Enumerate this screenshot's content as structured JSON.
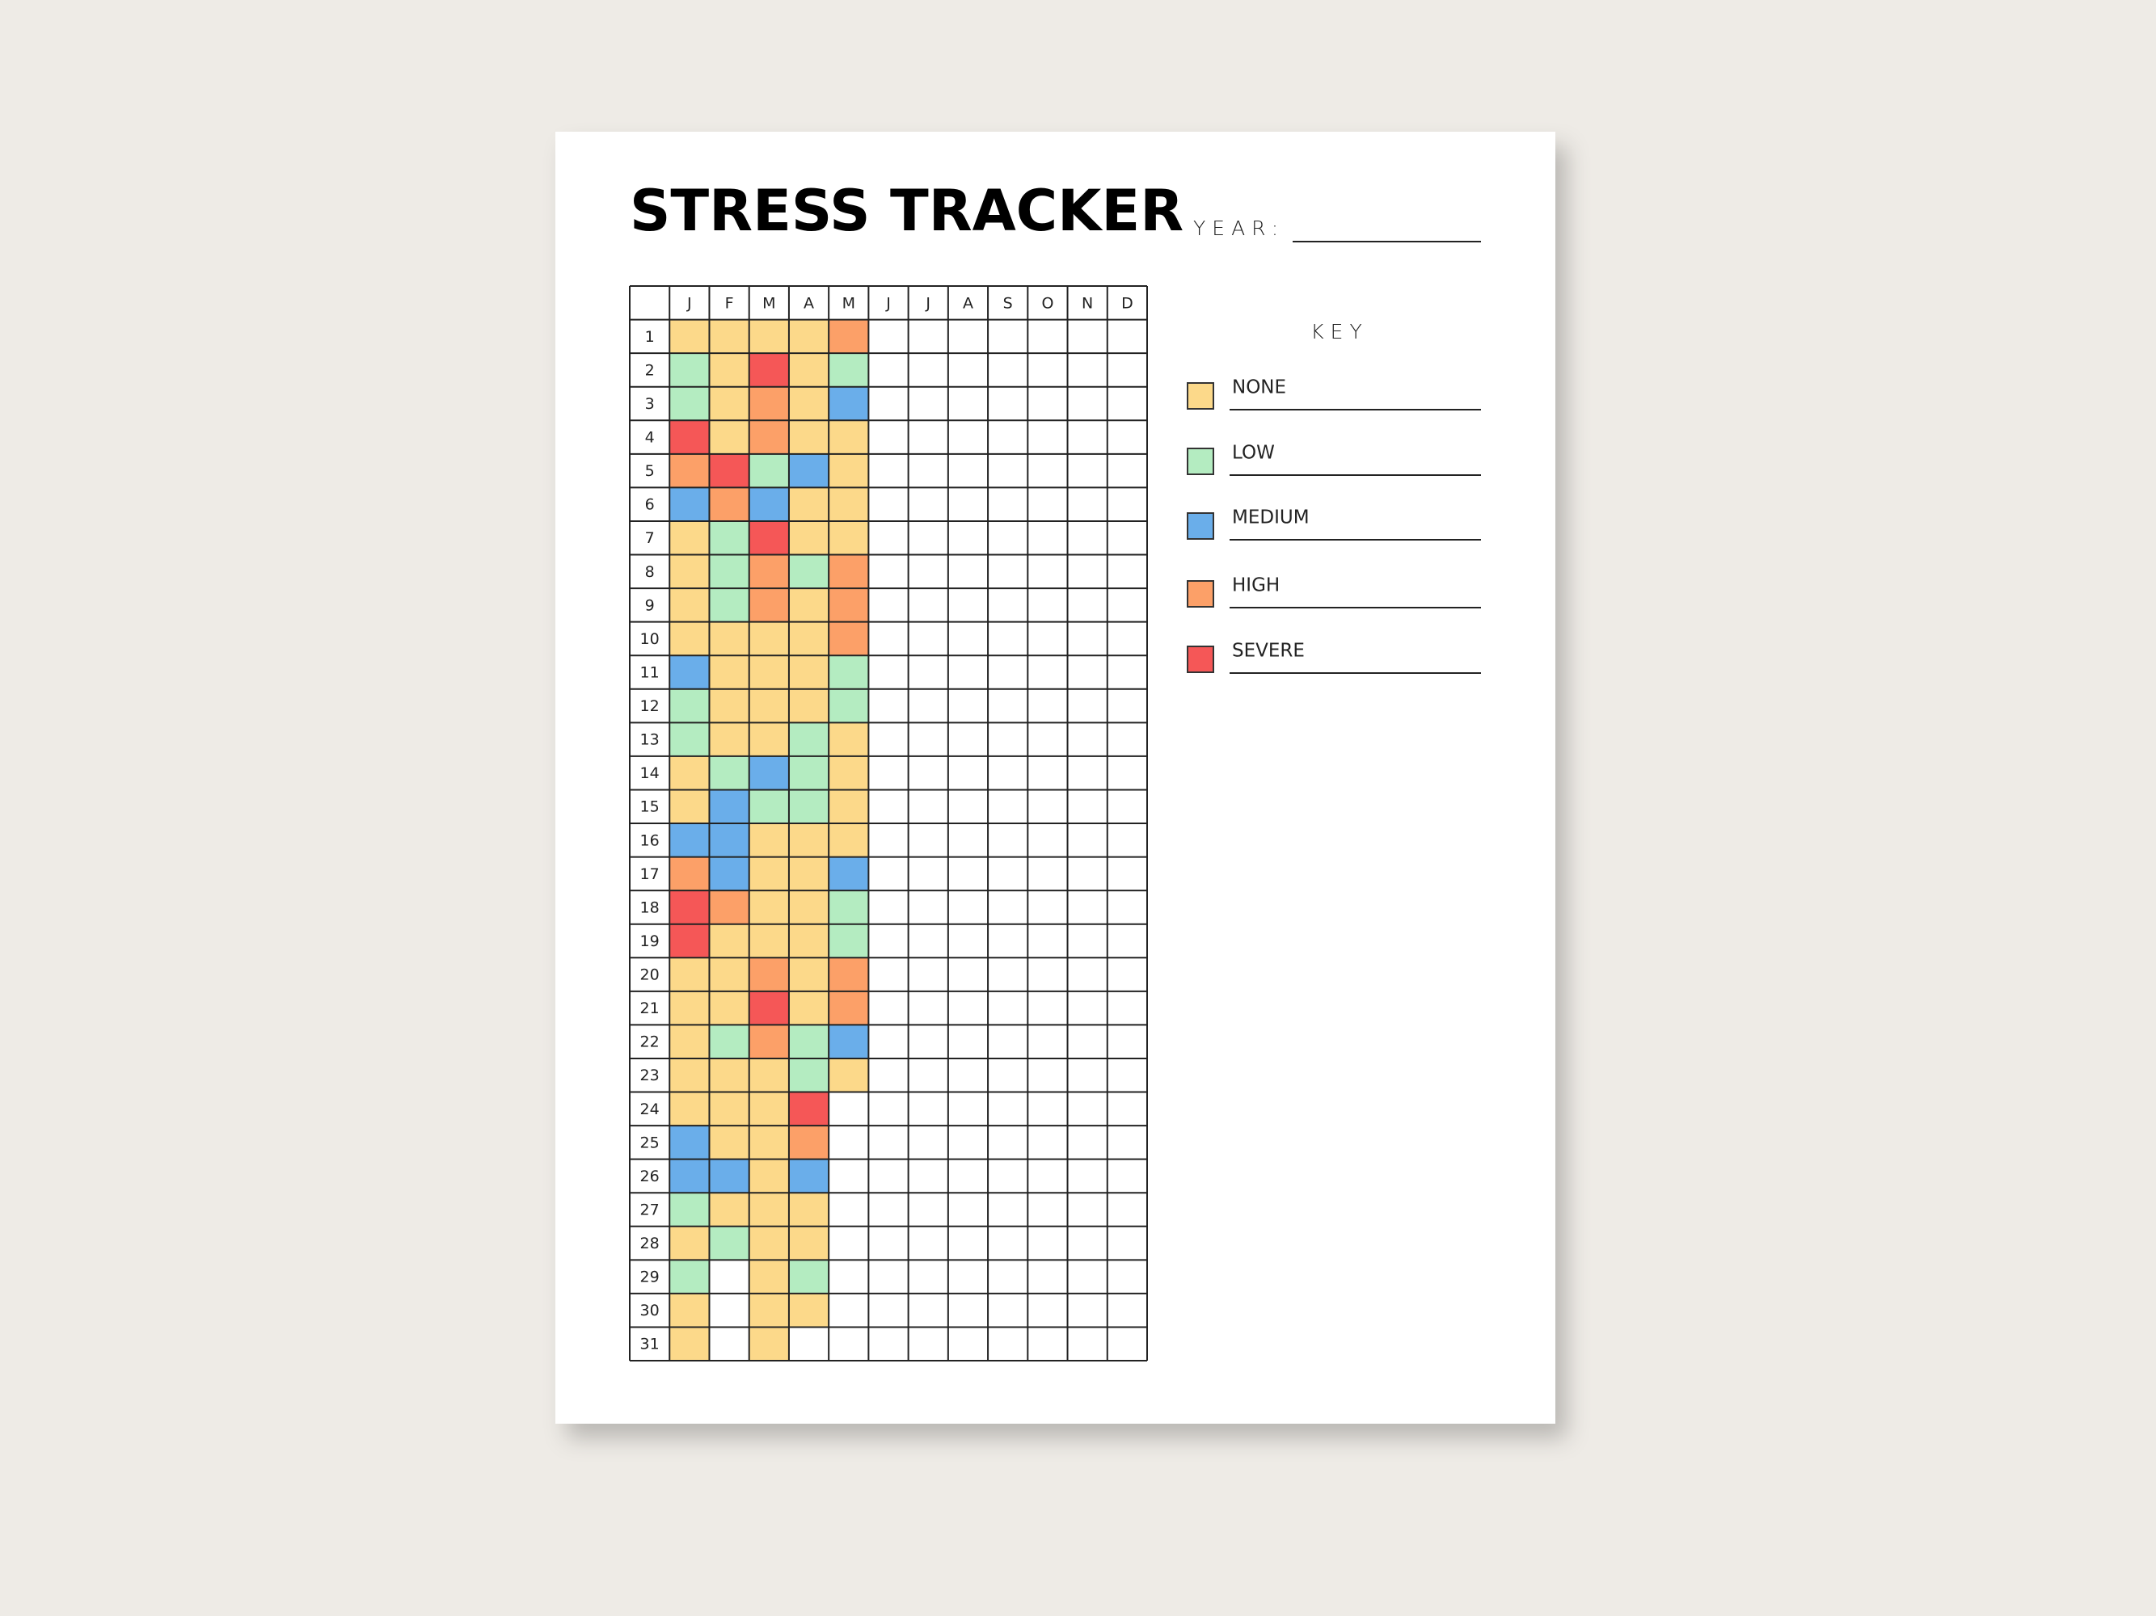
{
  "title": "STRESS TRACKER",
  "year_label": "YEAR:",
  "tracker": {
    "months": [
      "J",
      "F",
      "M",
      "A",
      "M",
      "J",
      "J",
      "A",
      "S",
      "O",
      "N",
      "D"
    ],
    "days": [
      1,
      2,
      3,
      4,
      5,
      6,
      7,
      8,
      9,
      10,
      11,
      12,
      13,
      14,
      15,
      16,
      17,
      18,
      19,
      20,
      21,
      22,
      23,
      24,
      25,
      26,
      27,
      28,
      29,
      30,
      31
    ],
    "cells": [
      [
        0,
        0,
        0,
        0,
        3
      ],
      [
        1,
        0,
        4,
        0,
        1
      ],
      [
        1,
        0,
        3,
        0,
        2
      ],
      [
        4,
        0,
        3,
        0,
        0
      ],
      [
        3,
        4,
        1,
        2,
        0
      ],
      [
        2,
        3,
        2,
        0,
        0
      ],
      [
        0,
        1,
        4,
        0,
        0
      ],
      [
        0,
        1,
        3,
        1,
        3
      ],
      [
        0,
        1,
        3,
        0,
        3
      ],
      [
        0,
        0,
        0,
        0,
        3
      ],
      [
        2,
        0,
        0,
        0,
        1
      ],
      [
        1,
        0,
        0,
        0,
        1
      ],
      [
        1,
        0,
        0,
        1,
        0
      ],
      [
        0,
        1,
        2,
        1,
        0
      ],
      [
        0,
        2,
        1,
        1,
        0
      ],
      [
        2,
        2,
        0,
        0,
        0
      ],
      [
        3,
        2,
        0,
        0,
        2
      ],
      [
        4,
        3,
        0,
        0,
        1
      ],
      [
        4,
        0,
        0,
        0,
        1
      ],
      [
        0,
        0,
        3,
        0,
        3
      ],
      [
        0,
        0,
        4,
        0,
        3
      ],
      [
        0,
        1,
        3,
        1,
        2
      ],
      [
        0,
        0,
        0,
        1,
        0
      ],
      [
        0,
        0,
        0,
        4,
        null
      ],
      [
        2,
        0,
        0,
        3,
        null
      ],
      [
        2,
        2,
        0,
        2,
        null
      ],
      [
        1,
        0,
        0,
        0,
        null
      ],
      [
        0,
        1,
        0,
        0,
        null
      ],
      [
        1,
        null,
        0,
        1,
        null
      ],
      [
        0,
        null,
        0,
        0,
        null
      ],
      [
        0,
        null,
        0,
        null,
        null
      ]
    ]
  },
  "key": {
    "title": "KEY",
    "items": [
      {
        "label": "NONE",
        "color": "#fcd98a"
      },
      {
        "label": "LOW",
        "color": "#b4ecc1"
      },
      {
        "label": "MEDIUM",
        "color": "#6aaeea"
      },
      {
        "label": "HIGH",
        "color": "#fca068"
      },
      {
        "label": "SEVERE",
        "color": "#f55757"
      }
    ]
  }
}
